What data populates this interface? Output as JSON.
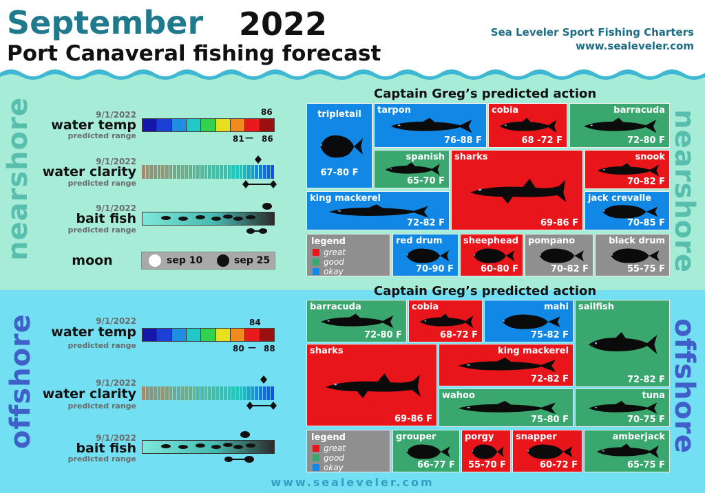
{
  "header": {
    "month": "September",
    "year": "2022",
    "subtitle": "Port Canaveral fishing forecast",
    "company": "Sea Leveler Sport Fishing Charters",
    "website": "www.sealeveler.com"
  },
  "nearshore": {
    "side_label": "nearshore",
    "water_temp": {
      "date": "9/1/2022",
      "label": "water temp",
      "sub": "predicted range",
      "current": "86",
      "range_low": "81",
      "range_high": "86",
      "range_sep": "—"
    },
    "water_clarity": {
      "date": "9/1/2022",
      "label": "water clarity",
      "sub": "predicted range"
    },
    "bait_fish": {
      "date": "9/1/2022",
      "label": "bait fish",
      "sub": "predicted range"
    },
    "moon": {
      "label": "moon",
      "full": "sep 10",
      "new": "sep 25"
    },
    "action_title": "Captain Greg’s predicted action",
    "fish": [
      {
        "name": "tripletail",
        "range": "67-80 F",
        "rating": "okay"
      },
      {
        "name": "tarpon",
        "range": "76-88 F",
        "rating": "okay"
      },
      {
        "name": "cobia",
        "range": "68 -72 F",
        "rating": "great"
      },
      {
        "name": "barracuda",
        "range": "72-80 F",
        "rating": "good"
      },
      {
        "name": "spanish",
        "range": "65-70 F",
        "rating": "good"
      },
      {
        "name": "sharks",
        "range": "69-86 F",
        "rating": "great"
      },
      {
        "name": "snook",
        "range": "70-82 F",
        "rating": "great"
      },
      {
        "name": "king mackerel",
        "range": "72-82 F",
        "rating": "okay"
      },
      {
        "name": "jack crevalle",
        "range": "70-85 F",
        "rating": "okay"
      },
      {
        "name": "red drum",
        "range": "70-90 F",
        "rating": "okay"
      },
      {
        "name": "sheephead",
        "range": "60-80 F",
        "rating": "great"
      },
      {
        "name": "pompano",
        "range": "70-82 F",
        "rating": "none"
      },
      {
        "name": "black drum",
        "range": "55-75 F",
        "rating": "none"
      }
    ],
    "legend": {
      "title": "legend",
      "great": "great",
      "good": "good",
      "okay": "okay"
    }
  },
  "offshore": {
    "side_label": "offshore",
    "water_temp": {
      "date": "9/1/2022",
      "label": "water temp",
      "sub": "predicted range",
      "current": "84",
      "range_low": "80",
      "range_high": "88",
      "range_sep": "—"
    },
    "water_clarity": {
      "date": "9/1/2022",
      "label": "water clarity",
      "sub": "predicted range"
    },
    "bait_fish": {
      "date": "9/1/2022",
      "label": "bait fish",
      "sub": "predicted range"
    },
    "action_title": "Captain Greg’s predicted action",
    "fish": [
      {
        "name": "barracuda",
        "range": "72-80 F",
        "rating": "good"
      },
      {
        "name": "cobia",
        "range": "68-72 F",
        "rating": "great"
      },
      {
        "name": "mahi",
        "range": "75-82 F",
        "rating": "okay"
      },
      {
        "name": "sailfish",
        "range": "72-82 F",
        "rating": "good"
      },
      {
        "name": "sharks",
        "range": "69-86 F",
        "rating": "great"
      },
      {
        "name": "king mackerel",
        "range": "72-82 F",
        "rating": "great"
      },
      {
        "name": "wahoo",
        "range": "75-80 F",
        "rating": "good"
      },
      {
        "name": "tuna",
        "range": "70-75 F",
        "rating": "good"
      },
      {
        "name": "grouper",
        "range": "66-77 F",
        "rating": "good"
      },
      {
        "name": "porgy",
        "range": "55-70 F",
        "rating": "great"
      },
      {
        "name": "snapper",
        "range": "60-72 F",
        "rating": "great"
      },
      {
        "name": "amberjack",
        "range": "65-75 F",
        "rating": "good"
      }
    ],
    "legend": {
      "title": "legend",
      "great": "great",
      "good": "good",
      "okay": "okay"
    }
  },
  "colors": {
    "great": "#e8151b",
    "good": "#3aa76f",
    "okay": "#1188e6",
    "none": "#8f8f8f"
  },
  "footer": "www.sealeveler.com"
}
